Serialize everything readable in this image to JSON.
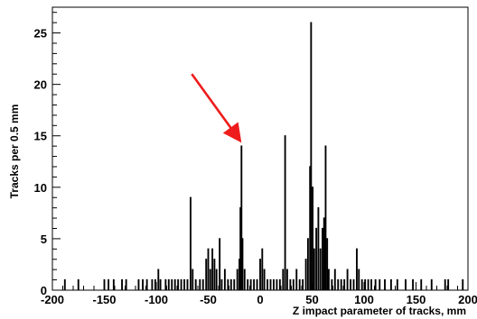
{
  "chart_data": {
    "type": "histogram",
    "xlabel": "Z impact parameter of tracks, mm",
    "ylabel": "Tracks per 0.5 mm",
    "bin_width": 0.5,
    "xlim": [
      -200,
      200
    ],
    "ylim": [
      0,
      27.5
    ],
    "x_ticks": [
      -200,
      -150,
      -100,
      -50,
      0,
      50,
      100,
      150,
      200
    ],
    "y_ticks": [
      0,
      5,
      10,
      15,
      20,
      25
    ],
    "x_tick_labels": [
      "-200",
      "-150",
      "-100",
      "-50",
      "0",
      "50",
      "100",
      "150",
      "200"
    ],
    "y_tick_labels": [
      "0",
      "5",
      "10",
      "15",
      "20",
      "25"
    ],
    "bins": [
      {
        "x": -188,
        "y": 1
      },
      {
        "x": -175,
        "y": 1
      },
      {
        "x": -150,
        "y": 1
      },
      {
        "x": -146,
        "y": 1
      },
      {
        "x": -141,
        "y": 1
      },
      {
        "x": -133,
        "y": 1
      },
      {
        "x": -129,
        "y": 1
      },
      {
        "x": -117,
        "y": 1
      },
      {
        "x": -113,
        "y": 1
      },
      {
        "x": -109,
        "y": 1
      },
      {
        "x": -104,
        "y": 1
      },
      {
        "x": -101,
        "y": 1
      },
      {
        "x": -98,
        "y": 2
      },
      {
        "x": -96,
        "y": 1
      },
      {
        "x": -91,
        "y": 1
      },
      {
        "x": -88,
        "y": 1
      },
      {
        "x": -85,
        "y": 1
      },
      {
        "x": -82,
        "y": 1
      },
      {
        "x": -79,
        "y": 1
      },
      {
        "x": -76,
        "y": 1
      },
      {
        "x": -73,
        "y": 1
      },
      {
        "x": -70,
        "y": 1
      },
      {
        "x": -67,
        "y": 9
      },
      {
        "x": -65,
        "y": 2
      },
      {
        "x": -62,
        "y": 1
      },
      {
        "x": -58,
        "y": 1
      },
      {
        "x": -55,
        "y": 1
      },
      {
        "x": -52,
        "y": 3
      },
      {
        "x": -50,
        "y": 4
      },
      {
        "x": -48,
        "y": 2
      },
      {
        "x": -46,
        "y": 4
      },
      {
        "x": -44,
        "y": 3
      },
      {
        "x": -42,
        "y": 2
      },
      {
        "x": -39,
        "y": 5
      },
      {
        "x": -37,
        "y": 1
      },
      {
        "x": -34,
        "y": 2
      },
      {
        "x": -31,
        "y": 1
      },
      {
        "x": -28,
        "y": 1
      },
      {
        "x": -25,
        "y": 1
      },
      {
        "x": -22,
        "y": 2
      },
      {
        "x": -20,
        "y": 3
      },
      {
        "x": -19,
        "y": 8
      },
      {
        "x": -18,
        "y": 14
      },
      {
        "x": -17,
        "y": 5
      },
      {
        "x": -15,
        "y": 2
      },
      {
        "x": -12,
        "y": 1
      },
      {
        "x": -9,
        "y": 1
      },
      {
        "x": -6,
        "y": 1
      },
      {
        "x": -3,
        "y": 1
      },
      {
        "x": 0,
        "y": 3
      },
      {
        "x": 2,
        "y": 4
      },
      {
        "x": 4,
        "y": 2
      },
      {
        "x": 7,
        "y": 1
      },
      {
        "x": 10,
        "y": 1
      },
      {
        "x": 13,
        "y": 1
      },
      {
        "x": 16,
        "y": 1
      },
      {
        "x": 19,
        "y": 1
      },
      {
        "x": 22,
        "y": 2
      },
      {
        "x": 24,
        "y": 15
      },
      {
        "x": 26,
        "y": 2
      },
      {
        "x": 29,
        "y": 1
      },
      {
        "x": 32,
        "y": 1
      },
      {
        "x": 35,
        "y": 2
      },
      {
        "x": 38,
        "y": 1
      },
      {
        "x": 41,
        "y": 1
      },
      {
        "x": 44,
        "y": 3
      },
      {
        "x": 46,
        "y": 5
      },
      {
        "x": 48,
        "y": 12
      },
      {
        "x": 49,
        "y": 26
      },
      {
        "x": 50.5,
        "y": 10
      },
      {
        "x": 52,
        "y": 4
      },
      {
        "x": 54,
        "y": 6
      },
      {
        "x": 56,
        "y": 8
      },
      {
        "x": 58,
        "y": 4
      },
      {
        "x": 60,
        "y": 6
      },
      {
        "x": 61.5,
        "y": 7
      },
      {
        "x": 63,
        "y": 14
      },
      {
        "x": 64.5,
        "y": 5
      },
      {
        "x": 66,
        "y": 2
      },
      {
        "x": 69,
        "y": 1
      },
      {
        "x": 72,
        "y": 2
      },
      {
        "x": 75,
        "y": 1
      },
      {
        "x": 78,
        "y": 1
      },
      {
        "x": 81,
        "y": 1
      },
      {
        "x": 84,
        "y": 2
      },
      {
        "x": 87,
        "y": 1
      },
      {
        "x": 90,
        "y": 1
      },
      {
        "x": 93,
        "y": 4
      },
      {
        "x": 95,
        "y": 2
      },
      {
        "x": 98,
        "y": 1
      },
      {
        "x": 101,
        "y": 1
      },
      {
        "x": 104,
        "y": 1
      },
      {
        "x": 107,
        "y": 1
      },
      {
        "x": 111,
        "y": 1
      },
      {
        "x": 115,
        "y": 1
      },
      {
        "x": 120,
        "y": 1
      },
      {
        "x": 126,
        "y": 1
      },
      {
        "x": 132,
        "y": 1
      },
      {
        "x": 140,
        "y": 1
      },
      {
        "x": 147,
        "y": 1
      },
      {
        "x": 155,
        "y": 1
      },
      {
        "x": 165,
        "y": 1
      },
      {
        "x": 178,
        "y": 1
      },
      {
        "x": 181,
        "y": 1
      },
      {
        "x": 195,
        "y": 1
      }
    ],
    "annotation": {
      "type": "arrow",
      "color": "#ee1c1c",
      "points_to": {
        "x": -18,
        "y": 14
      }
    },
    "grid": false,
    "legend": "none",
    "line_color": "#000000"
  }
}
